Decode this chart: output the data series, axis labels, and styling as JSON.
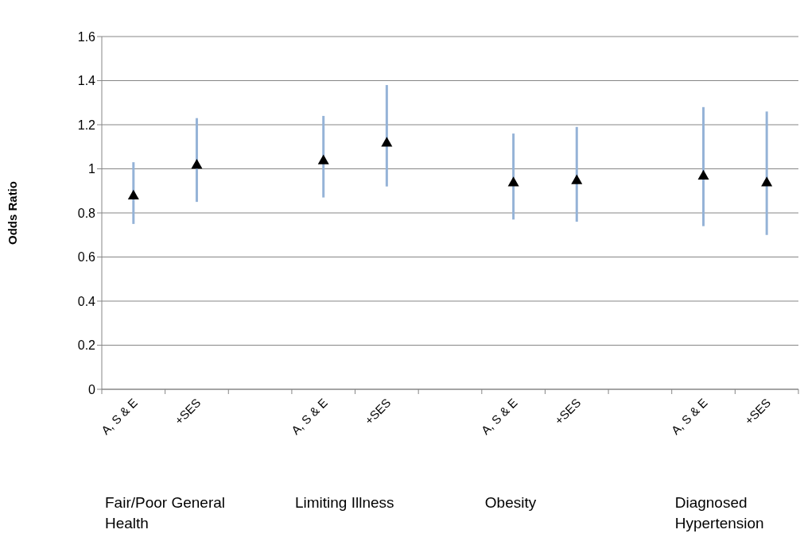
{
  "chart_data": {
    "type": "scatter",
    "ylabel": "Odds Ratio",
    "categories": [
      "A, S & E",
      "+SES",
      null,
      "A, S & E",
      "+SES",
      null,
      "A, S & E",
      "+SES",
      null,
      "A, S & E",
      "+SES"
    ],
    "series": [
      {
        "color": "#000000",
        "values": [
          0.88,
          1.02,
          null,
          1.04,
          1.12,
          null,
          0.94,
          0.95,
          null,
          0.97,
          0.94
        ],
        "errors": [
          [
            0.75,
            1.03
          ],
          [
            0.85,
            1.23
          ],
          null,
          [
            0.87,
            1.24
          ],
          [
            0.92,
            1.38
          ],
          null,
          [
            0.77,
            1.16
          ],
          [
            0.76,
            1.19
          ],
          null,
          [
            0.74,
            1.28
          ],
          [
            0.7,
            1.26
          ]
        ]
      }
    ],
    "annotations": [
      "Fair/Poor General Health",
      "Limiting Illness",
      "Obesity",
      "Diagnosed Hypertension"
    ],
    "ylim": [
      0,
      1.6
    ],
    "yticks": [
      0,
      0.2,
      0.4,
      0.6,
      0.8,
      1,
      1.2,
      1.4,
      1.6
    ],
    "grid": "y",
    "legend": false,
    "marker": "triangle"
  }
}
